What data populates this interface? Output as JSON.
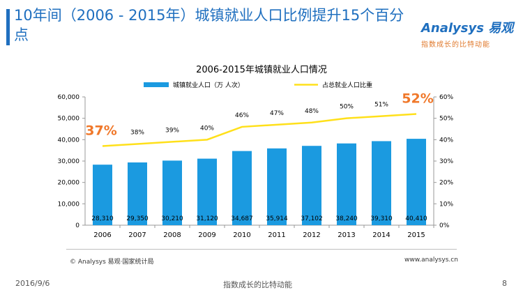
{
  "slide": {
    "title": "10年间（2006 - 2015年）城镇就业人口比例提升15个百分点",
    "date": "2016/9/6",
    "center_text": "指数成长的比特动能",
    "page_number": "8"
  },
  "logo": {
    "brand": "Analysys 易观",
    "tagline": "指数成长的比特动能"
  },
  "footer": {
    "source": "© Analysys 易观·国家统计局",
    "url": "www.analysys.cn"
  },
  "chart_data": {
    "type": "bar",
    "title": "2006-2015年城镇就业人口情况",
    "categories": [
      "2006",
      "2007",
      "2008",
      "2009",
      "2010",
      "2011",
      "2012",
      "2013",
      "2014",
      "2015"
    ],
    "series": [
      {
        "name": "城镇就业人口（万 人次）",
        "type": "bar",
        "axis": "left",
        "color": "#1b9ae0",
        "values": [
          28310,
          29350,
          30210,
          31120,
          34687,
          35914,
          37102,
          38240,
          39310,
          40410
        ],
        "labels": [
          "28,310",
          "29,350",
          "30,210",
          "31,120",
          "34,687",
          "35,914",
          "37,102",
          "38,240",
          "39,310",
          "40,410"
        ]
      },
      {
        "name": "占总就业人口比重",
        "type": "line",
        "axis": "right",
        "color": "#ffe01a",
        "values": [
          37,
          38,
          39,
          40,
          46,
          47,
          48,
          50,
          51,
          52
        ],
        "labels": [
          "37%",
          "38%",
          "39%",
          "40%",
          "46%",
          "47%",
          "48%",
          "50%",
          "51%",
          "52%"
        ]
      }
    ],
    "ylim_left": [
      0,
      60000
    ],
    "yticks_left": [
      "0",
      "10,000",
      "20,000",
      "30,000",
      "40,000",
      "50,000",
      "60,000"
    ],
    "ylim_right": [
      0,
      60
    ],
    "yticks_right": [
      "0%",
      "10%",
      "20%",
      "30%",
      "40%",
      "50%",
      "60%"
    ],
    "highlight_color": "#f0782a",
    "legend_position": "top",
    "grid": false
  }
}
